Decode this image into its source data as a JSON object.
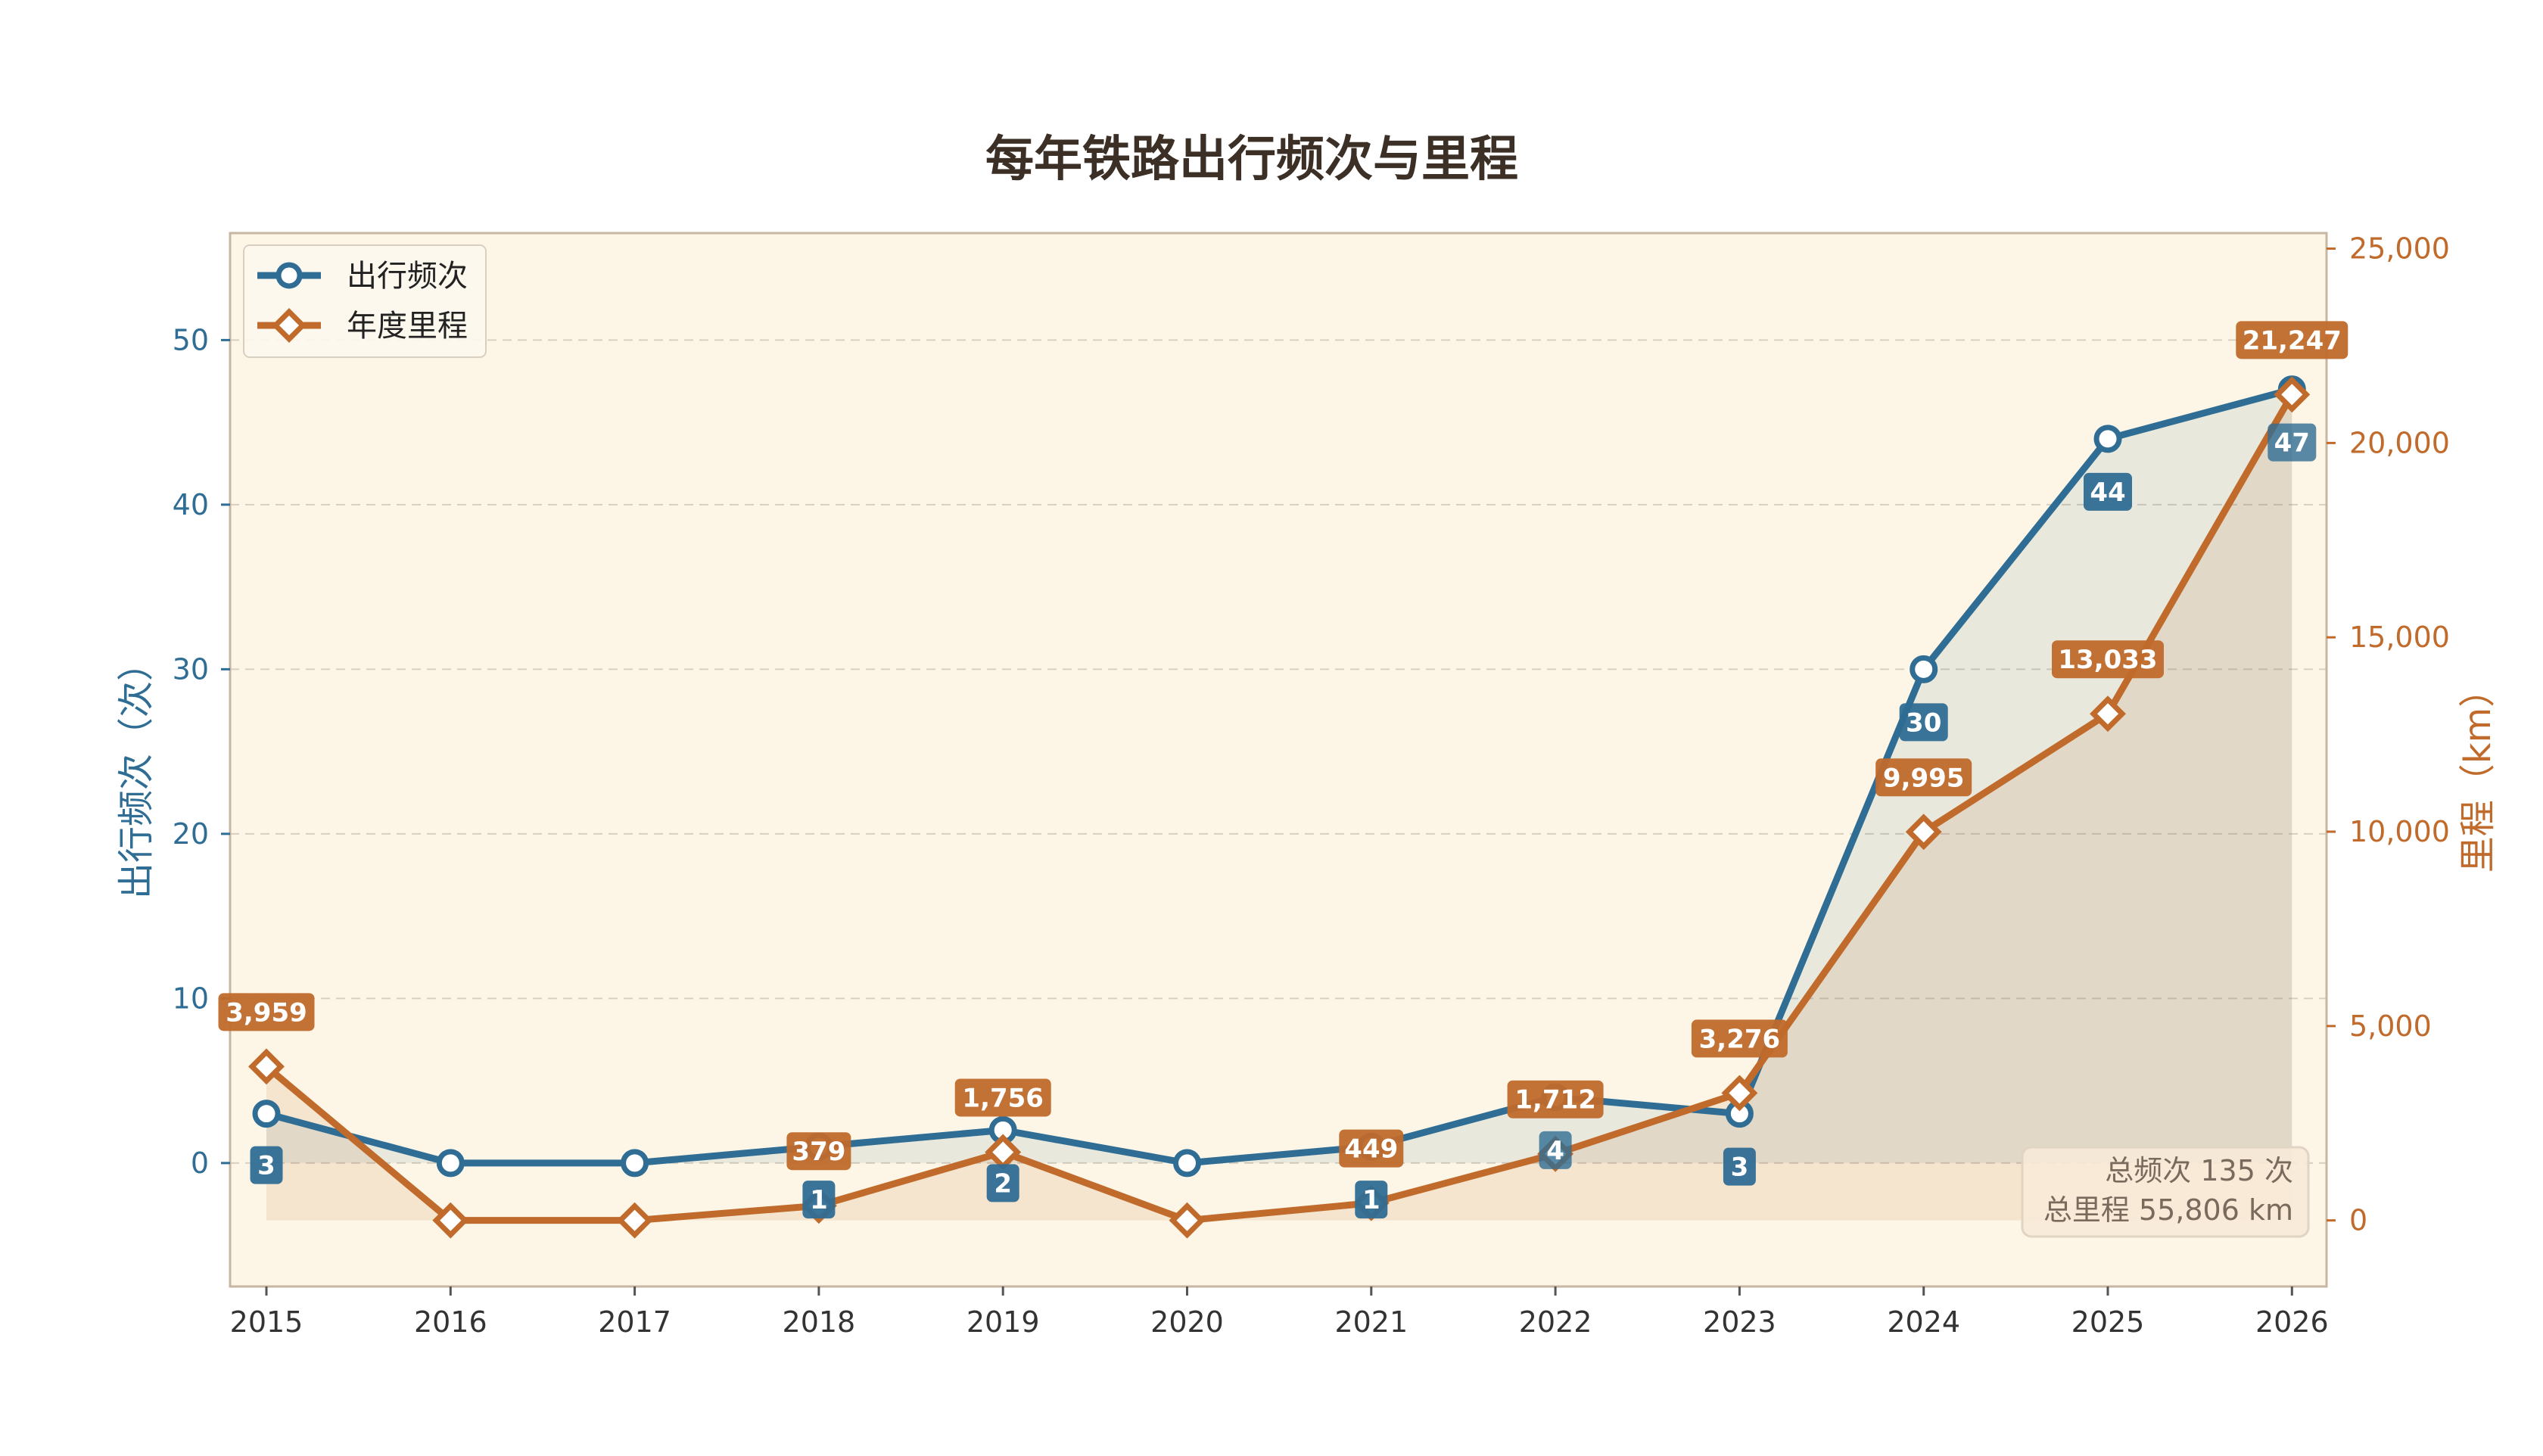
{
  "colors": {
    "trips": "#2f6d94",
    "mileage": "#c06a2b",
    "plot_bg": "#fdf6e6",
    "frame": "#c7b7a2",
    "grid": "#d9cfc0",
    "title": "#3b2f26"
  },
  "chart_data": {
    "type": "line",
    "title": "每年铁路出行频次与里程",
    "x": [
      "2015",
      "2016",
      "2017",
      "2018",
      "2019",
      "2020",
      "2021",
      "2022",
      "2023",
      "2024",
      "2025",
      "2026"
    ],
    "series": [
      {
        "name": "出行频次",
        "axis": "left",
        "marker": "circle",
        "fill_area": true,
        "values": [
          3,
          0,
          0,
          1,
          2,
          0,
          1,
          4,
          3,
          30,
          44,
          47
        ],
        "labels": [
          "3",
          "",
          "",
          "1",
          "2",
          "",
          "1",
          "4",
          "3",
          "30",
          "44",
          "47"
        ]
      },
      {
        "name": "年度里程",
        "axis": "right",
        "marker": "diamond",
        "fill_area": true,
        "values": [
          3959,
          0,
          0,
          379,
          1756,
          0,
          449,
          1712,
          3276,
          9995,
          13033,
          21247
        ],
        "labels": [
          "3,959",
          "",
          "",
          "379",
          "1,756",
          "",
          "449",
          "1,712",
          "3,276",
          "9,995",
          "13,033",
          "21,247"
        ]
      }
    ],
    "ylabel_left": "出行频次（次）",
    "ylabel_right": "里程（km）",
    "ylim_left": [
      -7.5,
      56.5
    ],
    "ylim_right": [
      -1700,
      25400
    ],
    "yticks_left": [
      0,
      10,
      20,
      30,
      40,
      50
    ],
    "yticks_right": [
      0,
      5000,
      10000,
      15000,
      20000,
      25000
    ],
    "ytick_labels_left": [
      "0",
      "10",
      "20",
      "30",
      "40",
      "50"
    ],
    "ytick_labels_right": [
      "0",
      "5,000",
      "10,000",
      "15,000",
      "20,000",
      "25,000"
    ],
    "grid": "horizontal-dashed",
    "legend_position": "top-left",
    "legend": [
      "出行频次",
      "年度里程"
    ],
    "summary": {
      "line1": "总频次 135 次",
      "line2": "总里程 55,806 km"
    }
  }
}
